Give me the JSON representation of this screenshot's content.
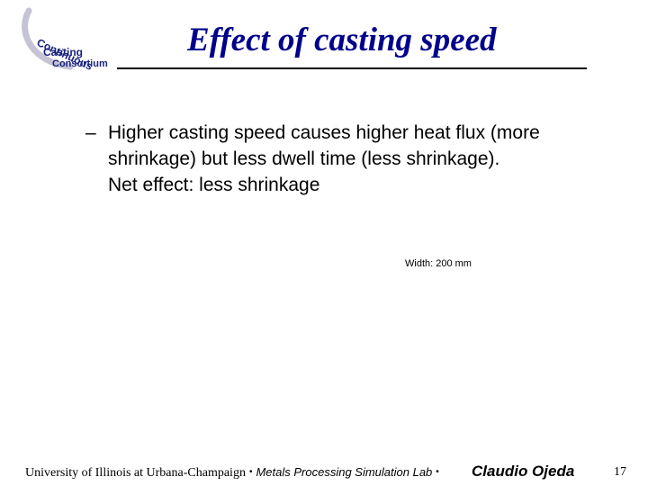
{
  "logo": {
    "line1": "Continuous",
    "line2": "Casting",
    "line3": "Consortium",
    "color": "#1a237e",
    "swoosh_color": "#c4c4d4"
  },
  "slide": {
    "title": "Effect of casting speed",
    "bullet_marker": "–",
    "bullet_lines": [
      "Higher casting speed causes higher heat flux (more",
      "shrinkage) but less dwell time (less shrinkage).",
      "Net effect: less shrinkage"
    ],
    "width_label": "Width: 200 mm"
  },
  "footer": {
    "university": "University of Illinois at Urbana-Champaign",
    "separator": "•",
    "lab": "Metals Processing Simulation Lab",
    "author": "Claudio Ojeda",
    "page_number": "17"
  },
  "colors": {
    "title": "#00008b",
    "text": "#000000",
    "background": "#ffffff"
  }
}
